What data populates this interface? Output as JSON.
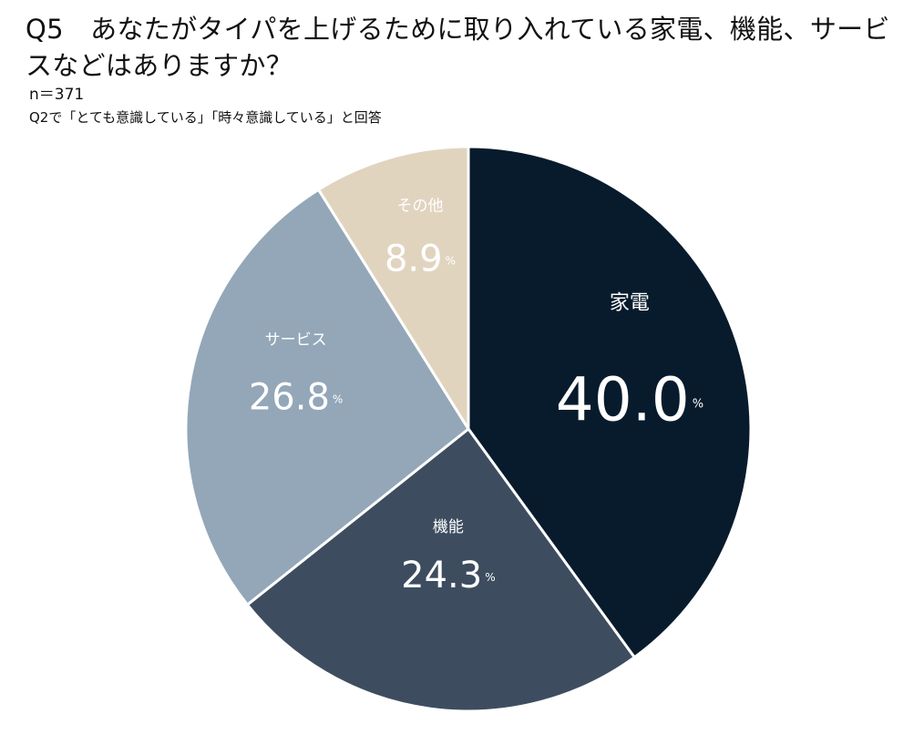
{
  "header": {
    "title": "Q5　あなたがタイパを上げるために取り入れている家電、機能、サービスなどはありますか？",
    "sample_size": "n＝371",
    "basis": "Q2で「とても意識している」「時々意識している」と回答"
  },
  "chart_data": {
    "type": "pie",
    "title": "Q5　あなたがタイパを上げるために取り入れている家電、機能、サービスなどはありますか？",
    "unit": "%",
    "slices": [
      {
        "label": "家電",
        "value": 40.0,
        "display": "40.0",
        "color": "#081b2c",
        "label_color": "#ffffff"
      },
      {
        "label": "機能",
        "value": 24.3,
        "display": "24.3",
        "color": "#3d4d5f",
        "label_color": "#ffffff"
      },
      {
        "label": "サービス",
        "value": 26.8,
        "display": "26.8",
        "color": "#93a7b8",
        "label_color": "#ffffff"
      },
      {
        "label": "その他",
        "value": 8.9,
        "display": "8.9",
        "color": "#e1d4bf",
        "label_color": "#ffffff"
      }
    ],
    "start": "12 o'clock",
    "direction": "clockwise"
  }
}
